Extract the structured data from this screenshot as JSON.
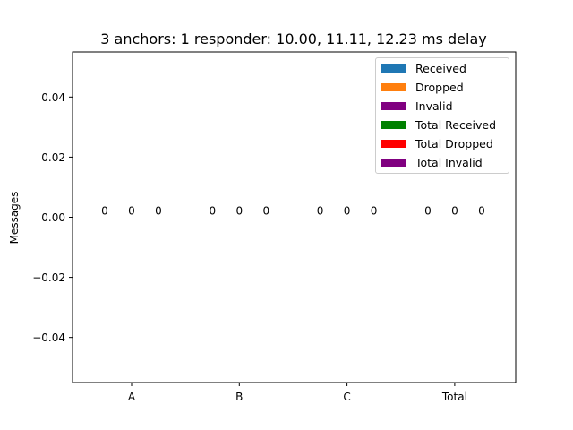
{
  "chart_data": {
    "type": "bar",
    "title": "3 anchors: 1 responder: 10.00, 11.11, 12.23 ms delay",
    "xlabel": "",
    "ylabel": "Messages",
    "categories": [
      "A",
      "B",
      "C",
      "Total"
    ],
    "ylim": [
      -0.055,
      0.055
    ],
    "yticks": [
      0.04,
      0.02,
      0.0,
      -0.02,
      -0.04
    ],
    "ytick_labels": [
      "0.04",
      "0.02",
      "0.00",
      "−0.02",
      "−0.04"
    ],
    "grid": false,
    "legend_position": "top-right",
    "series": [
      {
        "name": "Received",
        "color": "#1f77b4",
        "values": [
          0,
          0,
          0,
          null
        ]
      },
      {
        "name": "Dropped",
        "color": "#ff7f0e",
        "values": [
          0,
          0,
          0,
          null
        ]
      },
      {
        "name": "Invalid",
        "color": "#800080",
        "values": [
          0,
          0,
          0,
          null
        ]
      },
      {
        "name": "Total Received",
        "color": "#008000",
        "values": [
          null,
          null,
          null,
          0
        ]
      },
      {
        "name": "Total Dropped",
        "color": "#ff0000",
        "values": [
          null,
          null,
          null,
          0
        ]
      },
      {
        "name": "Total Invalid",
        "color": "#800080",
        "values": [
          null,
          null,
          null,
          0
        ]
      }
    ],
    "data_labels": [
      [
        "0",
        "0",
        "0"
      ],
      [
        "0",
        "0",
        "0"
      ],
      [
        "0",
        "0",
        "0"
      ],
      [
        "0",
        "0",
        "0"
      ]
    ]
  }
}
